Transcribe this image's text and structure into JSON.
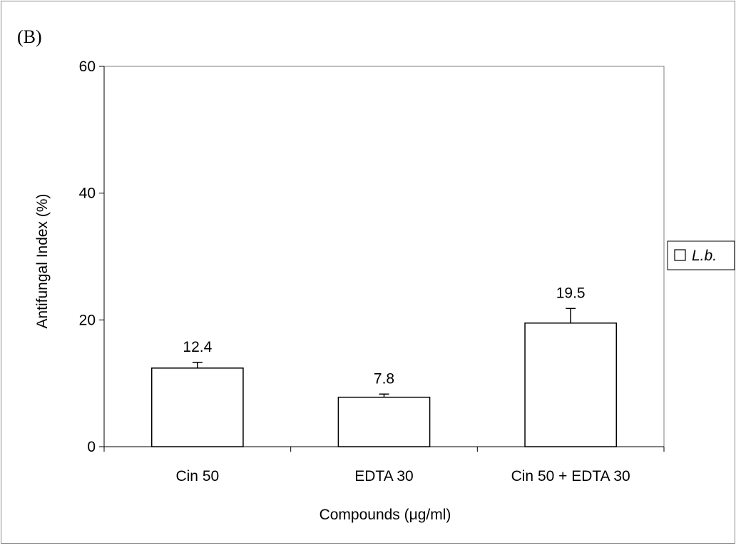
{
  "panel_label": "(B)",
  "chart_data": {
    "type": "bar",
    "categories": [
      "Cin 50",
      "EDTA 30",
      "Cin 50 + EDTA 30"
    ],
    "series": [
      {
        "name": "L.b.",
        "values": [
          12.4,
          7.8,
          19.5
        ],
        "error": [
          0.9,
          0.5,
          2.3
        ],
        "labels": [
          "12.4",
          "7.8",
          "19.5"
        ]
      }
    ],
    "title": "",
    "xlabel": "Compounds (μg/ml)",
    "ylabel": "Antifungal Index (%)",
    "ylim": [
      0,
      60
    ],
    "yticks": [
      0,
      20,
      40,
      60
    ],
    "ytick_labels": [
      "0",
      "20",
      "40",
      "60"
    ],
    "grid": false,
    "legend": {
      "placement": "right",
      "entries": [
        "L.b."
      ]
    },
    "colors": {
      "bar_fill": "#ffffff",
      "bar_stroke": "#000000",
      "axis": "#000000",
      "frame": "#7f7f7f"
    }
  }
}
